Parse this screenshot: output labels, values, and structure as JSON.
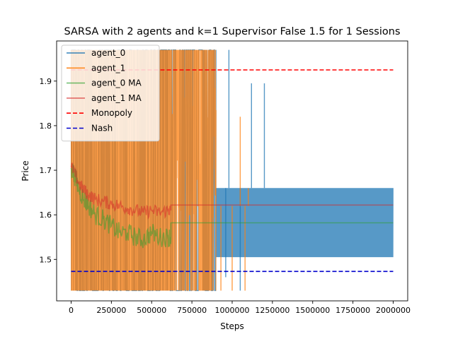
{
  "chart_data": {
    "type": "line",
    "title": "SARSA with 2 agents and k=1 Supervisor False 1.5 for 1 Sessions",
    "xlabel": "Steps",
    "ylabel": "Price",
    "xlim": [
      -90000,
      2090000
    ],
    "ylim": [
      1.407,
      1.99
    ],
    "xticks": [
      0,
      250000,
      500000,
      750000,
      1000000,
      1250000,
      1500000,
      1750000,
      2000000
    ],
    "xtick_labels": [
      "0",
      "250000",
      "500000",
      "750000",
      "1000000",
      "1250000",
      "1500000",
      "1750000",
      "2000000"
    ],
    "yticks": [
      1.5,
      1.6,
      1.7,
      1.8,
      1.9
    ],
    "ytick_labels": [
      "1.5",
      "1.6",
      "1.7",
      "1.8",
      "1.9"
    ],
    "grid": false,
    "legend_position": "top-left",
    "series": [
      {
        "name": "agent_0",
        "color": "#1f77b4",
        "alpha": 0.75,
        "style": "solid",
        "description_points": [
          [
            0,
            1.43
          ],
          [
            880000,
            1.43
          ],
          [
            880000,
            1.97
          ],
          [
            900000,
            1.66
          ],
          [
            900000,
            1.505
          ],
          [
            2000000,
            1.505
          ],
          [
            2000000,
            1.66
          ]
        ],
        "band": {
          "x": [
            900000,
            2000000
          ],
          "low": 1.505,
          "high": 1.66
        },
        "spikes": [
          [
            980000,
            1.97
          ],
          [
            1120000,
            1.895
          ],
          [
            1200000,
            1.895
          ],
          [
            1050000,
            1.43
          ],
          [
            960000,
            1.46
          ]
        ]
      },
      {
        "name": "agent_1",
        "color": "#ff7f0e",
        "alpha": 0.75,
        "style": "solid",
        "band": {
          "x": [
            0,
            900000
          ],
          "low": 1.43,
          "high": 1.97
        },
        "spikes": [
          [
            930000,
            1.43
          ],
          [
            1000000,
            1.43
          ],
          [
            1050000,
            1.82
          ],
          [
            1080000,
            1.43
          ],
          [
            1100000,
            1.66
          ]
        ]
      },
      {
        "name": "agent_0 MA",
        "color": "#2ca02c",
        "alpha": 0.5,
        "style": "solid",
        "x": [
          0,
          20000,
          50000,
          80000,
          110000,
          150000,
          200000,
          250000,
          300000,
          350000,
          400000,
          450000,
          500000,
          550000,
          600000,
          620000,
          620000,
          900000,
          1000000,
          1500000,
          2000000
        ],
        "y": [
          1.705,
          1.69,
          1.655,
          1.635,
          1.62,
          1.6,
          1.59,
          1.575,
          1.56,
          1.56,
          1.55,
          1.545,
          1.56,
          1.55,
          1.55,
          1.55,
          1.582,
          1.582,
          1.582,
          1.582,
          1.582
        ]
      },
      {
        "name": "agent_1 MA",
        "color": "#d62728",
        "alpha": 0.5,
        "style": "solid",
        "x": [
          0,
          20000,
          50000,
          80000,
          110000,
          150000,
          200000,
          250000,
          300000,
          350000,
          400000,
          450000,
          500000,
          550000,
          600000,
          620000,
          620000,
          900000,
          1000000,
          1500000,
          2000000
        ],
        "y": [
          1.71,
          1.695,
          1.67,
          1.655,
          1.645,
          1.635,
          1.63,
          1.625,
          1.62,
          1.615,
          1.61,
          1.605,
          1.61,
          1.605,
          1.61,
          1.61,
          1.622,
          1.622,
          1.622,
          1.622,
          1.622
        ]
      },
      {
        "name": "Monopoly",
        "color": "#ff0000",
        "style": "dashed",
        "x": [
          0,
          2000000
        ],
        "y": [
          1.925,
          1.925
        ]
      },
      {
        "name": "Nash",
        "color": "#0000cc",
        "style": "dashed",
        "x": [
          0,
          2000000
        ],
        "y": [
          1.473,
          1.473
        ]
      }
    ]
  }
}
